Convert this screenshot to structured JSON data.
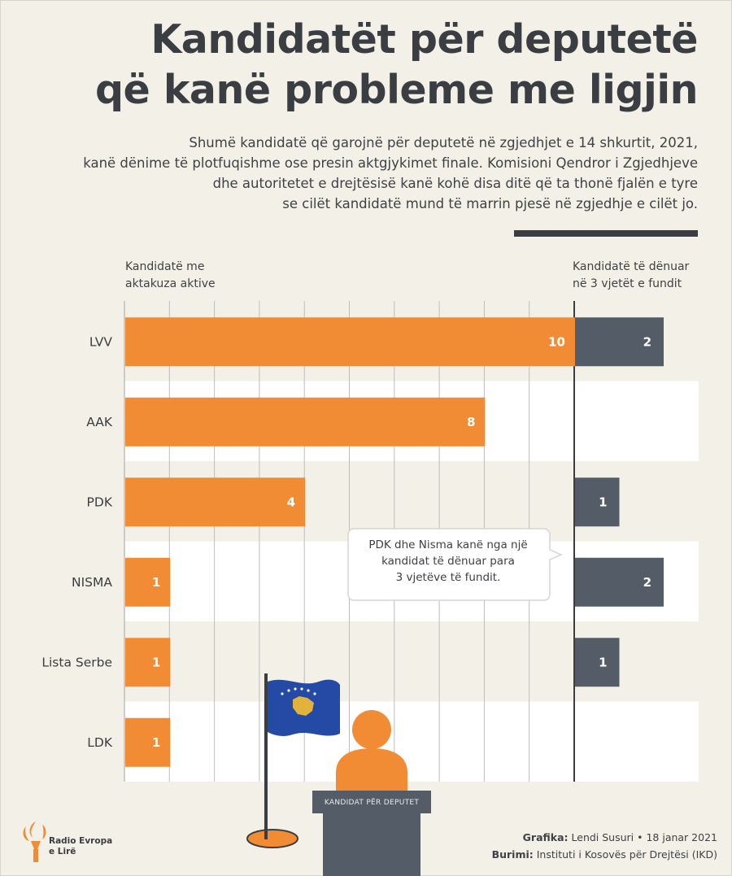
{
  "header": {
    "title_line1": "Kandidatët për deputetë",
    "title_line2": "që kanë probleme me ligjin",
    "subtitle_lines": [
      "Shumë kandidatë që garojnë për deputetë në zgjedhjet e 14 shkurtit, 2021,",
      "kanë dënime të plotfuqishme ose presin aktgjykimet finale. Komisioni Qendror i Zgjedhjeve",
      "dhe autoritetet e drejtësisë kanë kohë disa ditë që ta thonë fjalën e tyre",
      "se cilët kandidatë mund të marrin pjesë në zgjedhje e cilët jo."
    ]
  },
  "chart_data": {
    "type": "bar",
    "orientation": "horizontal",
    "categories": [
      "LVV",
      "AAK",
      "PDK",
      "NISMA",
      "Lista Serbe",
      "LDK"
    ],
    "series": [
      {
        "name_lines": [
          "Kandidatë me",
          "aktakuza aktive"
        ],
        "values": [
          10,
          8,
          4,
          1,
          1,
          1
        ],
        "labels": [
          "10",
          "8",
          "4",
          "1",
          "1",
          "1"
        ],
        "color": "#f18b34"
      },
      {
        "name_lines": [
          "Kandidatë të dënuar",
          "në 3 vjetët e fundit"
        ],
        "values": [
          2,
          0,
          1,
          2,
          1,
          0
        ],
        "labels": [
          "2",
          "",
          "1",
          "2",
          "1",
          ""
        ],
        "color": "#545c67"
      }
    ],
    "grid": true,
    "annotation_lines": [
      "PDK dhe Nisma kanë nga një",
      "kandidat të dënuar para",
      "3 vjetëve të fundit."
    ]
  },
  "illustration": {
    "podium_label": "KANDIDAT PËR DEPUTET",
    "flag_color": "#244aa5",
    "marker_color": "#f18b34"
  },
  "footer": {
    "credit_label": "Grafika:",
    "credit_value": " Lendi Susuri • 18 janar 2021",
    "source_label": "Burimi:",
    "source_value": " Instituti i Kosovës për Drejtësi (IKD)",
    "logo_line1": "Radio Evropa",
    "logo_line2": "e Lirë"
  },
  "colors": {
    "background": "#f3f1e7",
    "stripe": "#ffffff",
    "gridline": "#bdbdbd",
    "text": "#3a3d42"
  }
}
